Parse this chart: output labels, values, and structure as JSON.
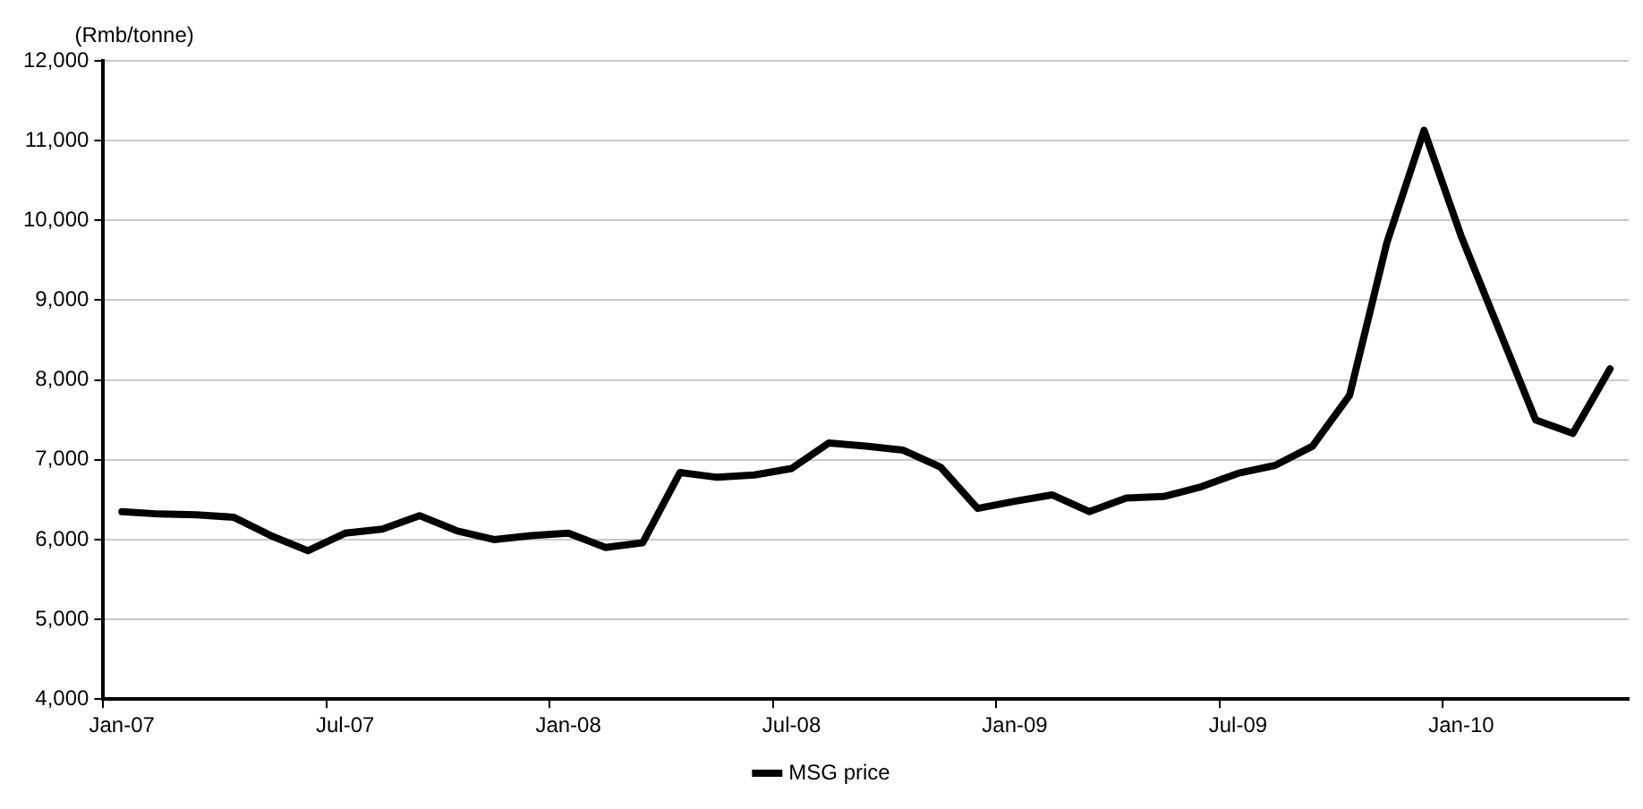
{
  "chart_data": {
    "type": "line",
    "ylabel": "(Rmb/tonne)",
    "categories": [
      "Jan-07",
      null,
      null,
      null,
      null,
      null,
      "Jul-07",
      null,
      null,
      null,
      null,
      null,
      "Jan-08",
      null,
      null,
      null,
      null,
      null,
      "Jul-08",
      null,
      null,
      null,
      null,
      null,
      "Jan-09",
      null,
      null,
      null,
      null,
      null,
      "Jul-09",
      null,
      null,
      null,
      null,
      null,
      "Jan-10",
      null,
      null,
      null,
      null
    ],
    "series": [
      {
        "name": "MSG price",
        "color": "#000000",
        "values": [
          6350,
          6320,
          6310,
          6280,
          6050,
          5860,
          6080,
          6130,
          6300,
          6110,
          6000,
          6050,
          6080,
          5900,
          5960,
          6840,
          6780,
          6810,
          6890,
          7210,
          7170,
          7120,
          6910,
          6390,
          6480,
          6560,
          6350,
          6520,
          6540,
          6660,
          6830,
          6930,
          7170,
          7810,
          9720,
          11130,
          9800,
          8650,
          7500,
          7330,
          8140
        ]
      }
    ],
    "ylim": [
      4000,
      12000
    ],
    "yticks": [
      {
        "value": 4000,
        "label": "4,000"
      },
      {
        "value": 5000,
        "label": "5,000"
      },
      {
        "value": 6000,
        "label": "6,000"
      },
      {
        "value": 7000,
        "label": "7,000"
      },
      {
        "value": 8000,
        "label": "8,000"
      },
      {
        "value": 9000,
        "label": "9,000"
      },
      {
        "value": 10000,
        "label": "10,000"
      },
      {
        "value": 11000,
        "label": "11,000"
      },
      {
        "value": 12000,
        "label": "12,000"
      }
    ],
    "grid": "y",
    "legend": "bottom",
    "marker": "none",
    "line_style": "solid"
  }
}
